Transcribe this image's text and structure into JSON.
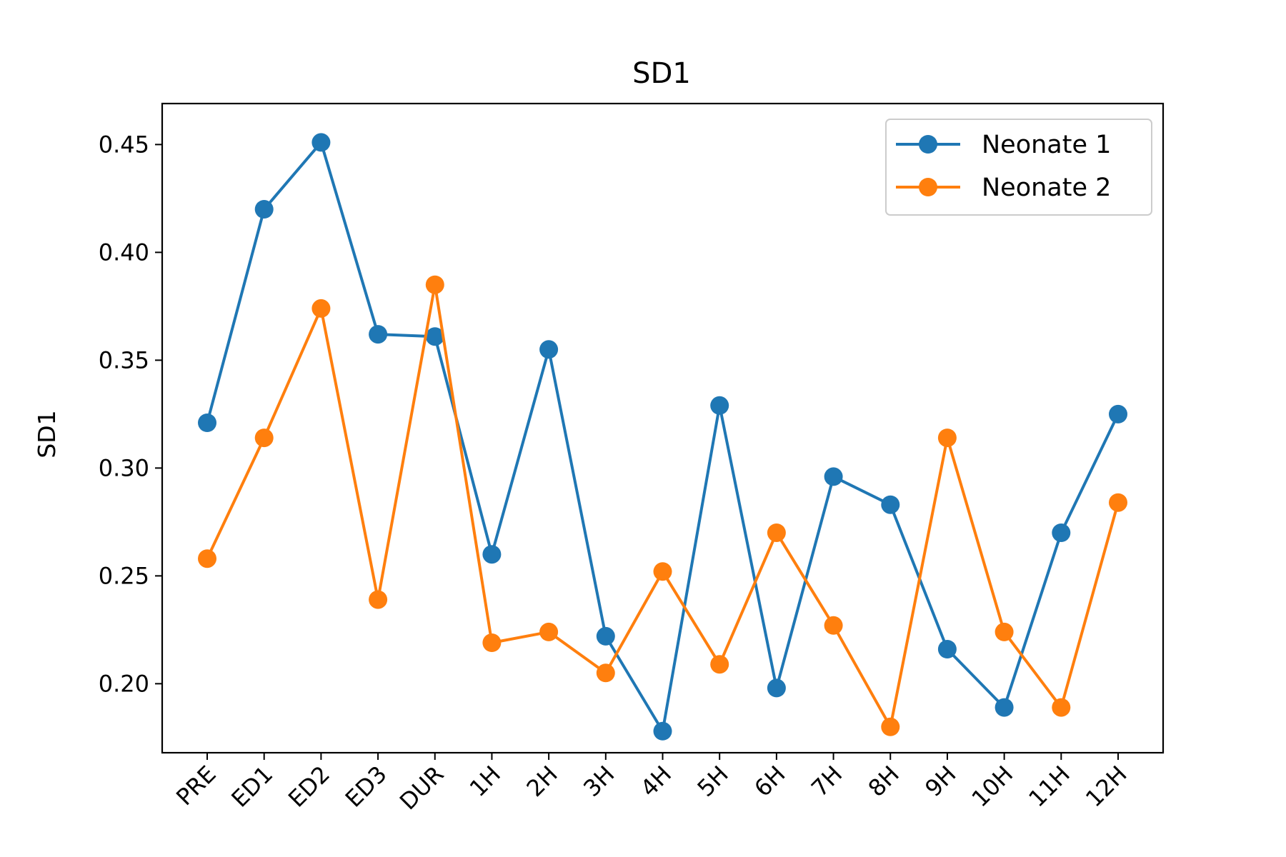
{
  "chart_data": {
    "type": "line",
    "title": "SD1",
    "xlabel": "",
    "ylabel": "SD1",
    "categories": [
      "PRE",
      "ED1",
      "ED2",
      "ED3",
      "DUR",
      "1H",
      "2H",
      "3H",
      "4H",
      "5H",
      "6H",
      "7H",
      "8H",
      "9H",
      "10H",
      "11H",
      "12H"
    ],
    "ylim": [
      0.168,
      0.469
    ],
    "yticks": [
      0.2,
      0.25,
      0.3,
      0.35,
      0.4,
      0.45
    ],
    "ytick_labels": [
      "0.20",
      "0.25",
      "0.30",
      "0.35",
      "0.40",
      "0.45"
    ],
    "grid": false,
    "legend_position": "top-right",
    "series": [
      {
        "name": "Neonate 1",
        "color": "#1f77b4",
        "values": [
          0.321,
          0.42,
          0.451,
          0.362,
          0.361,
          0.26,
          0.355,
          0.222,
          0.178,
          0.329,
          0.198,
          0.296,
          0.283,
          0.216,
          0.189,
          0.27,
          0.325
        ]
      },
      {
        "name": "Neonate 2",
        "color": "#ff7f0e",
        "values": [
          0.258,
          0.314,
          0.374,
          0.239,
          0.385,
          0.219,
          0.224,
          0.205,
          0.252,
          0.209,
          0.27,
          0.227,
          0.18,
          0.314,
          0.224,
          0.189,
          0.284
        ]
      }
    ]
  }
}
